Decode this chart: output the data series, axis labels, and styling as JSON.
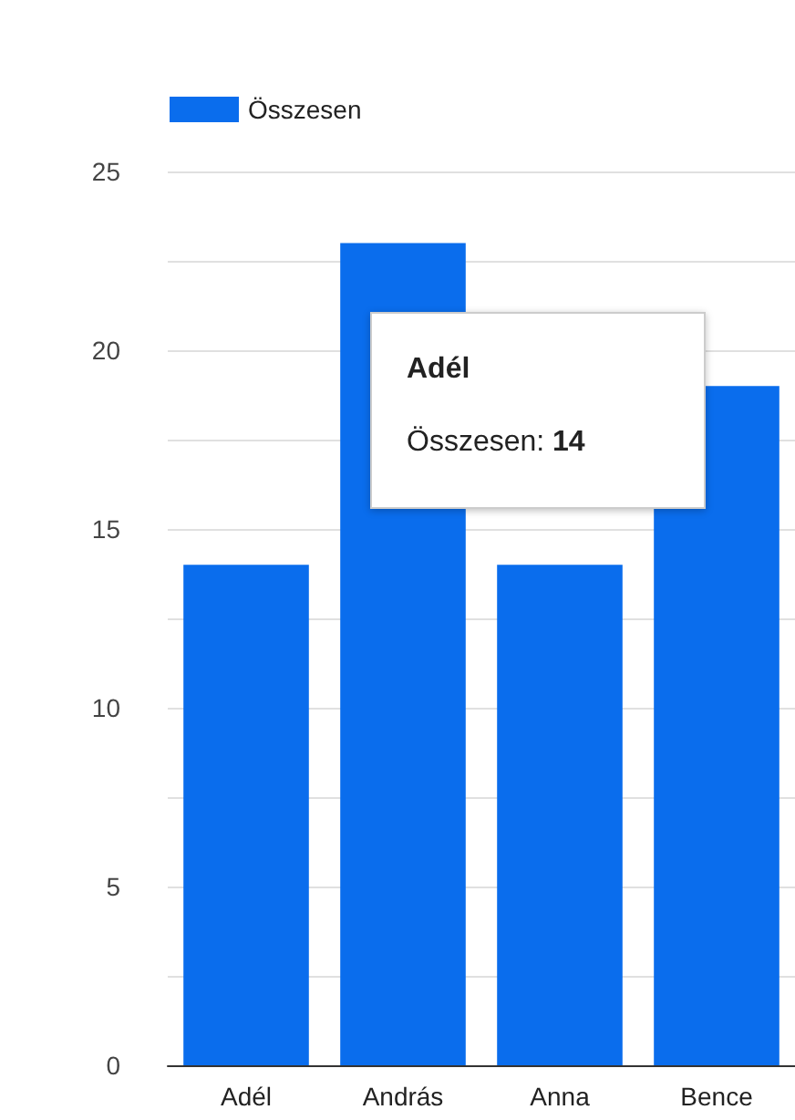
{
  "chart_data": {
    "type": "bar",
    "categories": [
      "Adél",
      "András",
      "Anna",
      "Bence"
    ],
    "series": [
      {
        "name": "Összesen",
        "color": "#0a6ded",
        "values": [
          14,
          23,
          14,
          19
        ]
      }
    ],
    "ylim": [
      0,
      25
    ],
    "yticks": [
      0,
      {
        "value": 2.5,
        "label": null
      },
      5,
      {
        "value": 7.5,
        "label": null
      },
      10,
      {
        "value": 12.5,
        "label": null
      },
      15,
      {
        "value": 17.5,
        "label": null
      },
      20,
      {
        "value": 22.5,
        "label": null
      },
      25
    ],
    "grid": "y",
    "legend": "top left",
    "annotations": [
      "Adél",
      "Összesen: 14"
    ]
  }
}
